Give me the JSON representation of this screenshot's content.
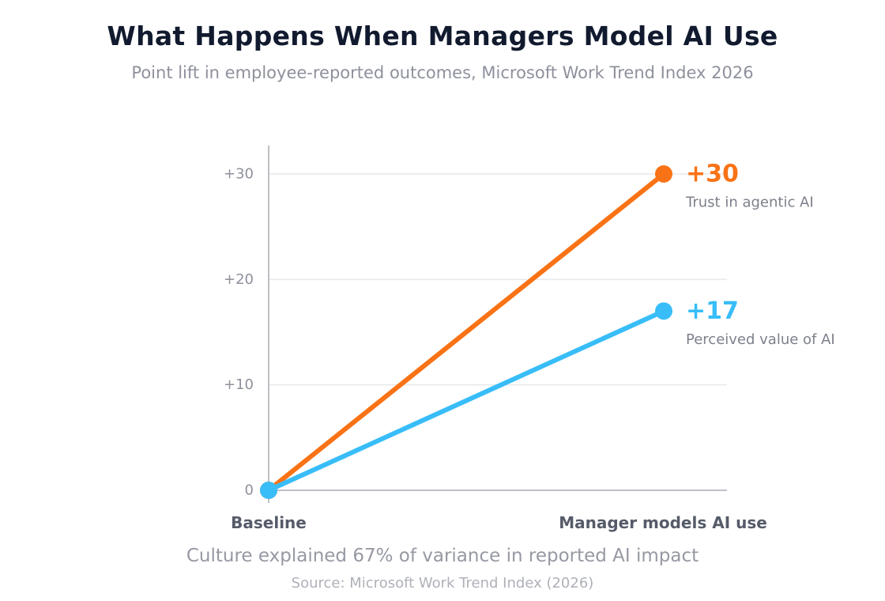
{
  "chart_data": {
    "type": "line",
    "title": "What Happens When Managers Model AI Use",
    "subtitle": "Point lift in employee-reported outcomes, Microsoft Work Trend Index 2026",
    "categories": [
      "Baseline",
      "Manager models AI use"
    ],
    "ylim": [
      0,
      30
    ],
    "yticks": [
      0,
      10,
      20,
      30
    ],
    "ytick_labels": [
      "0",
      "+10",
      "+20",
      "+30"
    ],
    "grid": true,
    "series": [
      {
        "name": "Trust in agentic AI",
        "values": [
          0,
          30
        ],
        "end_label": "+30",
        "color": "#f97316"
      },
      {
        "name": "Perceived value of AI",
        "values": [
          0,
          17
        ],
        "end_label": "+17",
        "color": "#38bdf8"
      }
    ]
  },
  "footnote": "Culture explained 67% of variance in reported AI impact",
  "source": "Source: Microsoft Work Trend Index (2026)"
}
